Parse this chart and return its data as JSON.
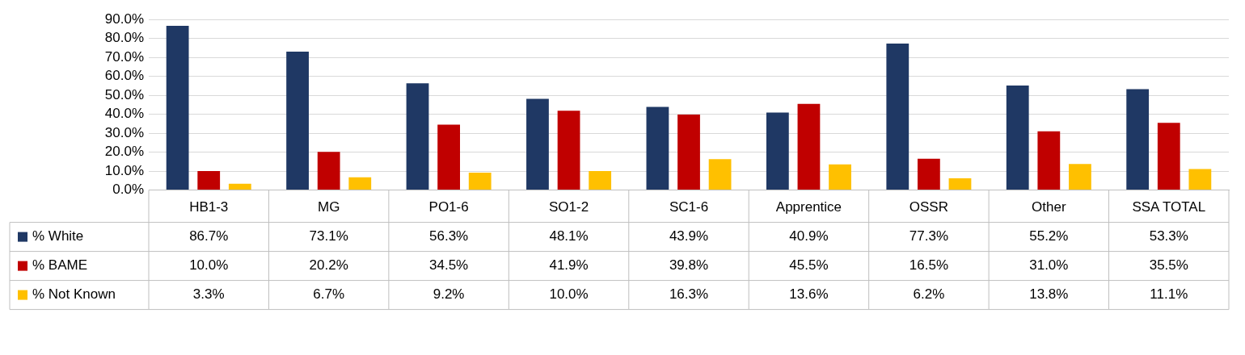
{
  "chart_data": {
    "type": "bar",
    "categories": [
      "HB1-3",
      "MG",
      "PO1-6",
      "SO1-2",
      "SC1-6",
      "Apprentice",
      "OSSR",
      "Other",
      "SSA TOTAL"
    ],
    "series": [
      {
        "name": "% White",
        "color": "#1f3864",
        "values": [
          86.7,
          73.1,
          56.3,
          48.1,
          43.9,
          40.9,
          77.3,
          55.2,
          53.3
        ],
        "value_labels": [
          "86.7%",
          "73.1%",
          "56.3%",
          "48.1%",
          "43.9%",
          "40.9%",
          "77.3%",
          "55.2%",
          "53.3%"
        ]
      },
      {
        "name": "% BAME",
        "color": "#c00000",
        "values": [
          10.0,
          20.2,
          34.5,
          41.9,
          39.8,
          45.5,
          16.5,
          31.0,
          35.5
        ],
        "value_labels": [
          "10.0%",
          "20.2%",
          "34.5%",
          "41.9%",
          "39.8%",
          "45.5%",
          "16.5%",
          "31.0%",
          "35.5%"
        ]
      },
      {
        "name": "% Not Known",
        "color": "#ffc000",
        "values": [
          3.3,
          6.7,
          9.2,
          10.0,
          16.3,
          13.6,
          6.2,
          13.8,
          11.1
        ],
        "value_labels": [
          "3.3%",
          "6.7%",
          "9.2%",
          "10.0%",
          "16.3%",
          "13.6%",
          "6.2%",
          "13.8%",
          "11.1%"
        ]
      }
    ],
    "ylim": [
      0,
      90
    ],
    "yticks": [
      {
        "value": 0,
        "label": "0.0%"
      },
      {
        "value": 10,
        "label": "10.0%"
      },
      {
        "value": 20,
        "label": "20.0%"
      },
      {
        "value": 30,
        "label": "30.0%"
      },
      {
        "value": 40,
        "label": "40.0%"
      },
      {
        "value": 50,
        "label": "50.0%"
      },
      {
        "value": 60,
        "label": "60.0%"
      },
      {
        "value": 70,
        "label": "70.0%"
      },
      {
        "value": 80,
        "label": "80.0%"
      },
      {
        "value": 90,
        "label": "90.0%"
      }
    ],
    "grid": "y",
    "legend": "bottom left"
  }
}
